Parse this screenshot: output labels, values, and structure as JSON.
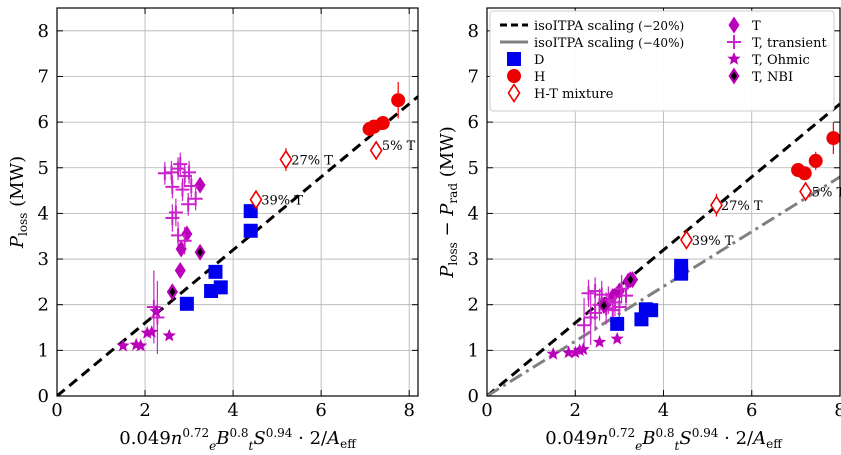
{
  "chart_data": [
    {
      "type": "scatter",
      "panel": "left",
      "xlabel": "0.049n̄ₑ^0.72 Bₜ^0.8 S^0.94 · 2/A_eff",
      "xlabel_parts": {
        "base": "0.049",
        "n": "n",
        "n_sub": "e",
        "n_sup": "0.72",
        "b": "B",
        "b_sub": "t",
        "b_sup": "0.8",
        "s": "S",
        "s_sup": "0.94",
        "tail": "· 2/",
        "a": "A",
        "a_sub": "eff"
      },
      "ylabel": "P_loss (MW)",
      "ylabel_parts": {
        "p": "P",
        "sub": "loss",
        "unit": "(MW)"
      },
      "xlim": [
        0,
        8.2
      ],
      "ylim": [
        0,
        8.5
      ],
      "xticks": [
        0,
        2,
        4,
        6,
        8
      ],
      "yticks": [
        0,
        1,
        2,
        3,
        4,
        5,
        6,
        7,
        8
      ],
      "grid": true,
      "lines": [
        {
          "style": "dashed",
          "color": "#000000",
          "slope": 0.8
        }
      ],
      "series": [
        {
          "marker": "square",
          "color": "#0000ee",
          "points": [
            [
              2.95,
              2.02
            ],
            [
              3.5,
              2.3
            ],
            [
              3.6,
              2.72
            ],
            [
              3.72,
              2.38
            ],
            [
              4.4,
              4.05
            ],
            [
              4.4,
              3.62
            ]
          ]
        },
        {
          "marker": "circle",
          "color": "#ee0000",
          "points": [
            [
              7.1,
              5.85
            ],
            [
              7.2,
              5.9
            ],
            [
              7.4,
              5.98
            ],
            [
              7.75,
              6.48
            ]
          ],
          "err": [
            0.15,
            0.15,
            0.15,
            0.4
          ]
        },
        {
          "marker": "diamond-open",
          "color": "#ee0000",
          "points": [
            [
              5.2,
              5.18
            ],
            [
              4.52,
              4.3
            ],
            [
              7.25,
              5.38
            ]
          ],
          "err": [
            0.25,
            0.2,
            0.2
          ]
        },
        {
          "marker": "diamond",
          "color": "#bb00bb",
          "points": [
            [
              2.8,
              2.75
            ],
            [
              2.82,
              3.22
            ],
            [
              2.95,
              3.55
            ],
            [
              3.25,
              4.62
            ],
            [
              2.62,
              2.28
            ]
          ]
        },
        {
          "marker": "plus",
          "color": "#cc22cc",
          "points": [
            [
              2.45,
              4.88
            ],
            [
              2.6,
              4.9
            ],
            [
              2.75,
              4.98
            ],
            [
              2.8,
              5.08
            ],
            [
              2.9,
              4.82
            ],
            [
              3.0,
              4.9
            ],
            [
              3.05,
              4.6
            ],
            [
              2.62,
              4.58
            ],
            [
              2.85,
              4.52
            ],
            [
              3.15,
              4.32
            ],
            [
              2.98,
              4.2
            ],
            [
              2.7,
              4.02
            ],
            [
              2.62,
              3.9
            ],
            [
              2.75,
              3.52
            ],
            [
              2.9,
              3.4
            ],
            [
              2.2,
              1.95
            ],
            [
              2.28,
              1.72
            ]
          ],
          "err": [
            0.25,
            0.25,
            0.25,
            0.25,
            0.25,
            0.25,
            0.25,
            0.25,
            0.25,
            0.25,
            0.25,
            0.3,
            0.3,
            0.3,
            0.3,
            0.8,
            0.8
          ]
        },
        {
          "marker": "star",
          "color": "#bb00bb",
          "points": [
            [
              1.5,
              1.1
            ],
            [
              1.8,
              1.12
            ],
            [
              1.9,
              1.1
            ],
            [
              2.05,
              1.38
            ],
            [
              2.15,
              1.4
            ],
            [
              2.25,
              1.85
            ],
            [
              2.55,
              1.32
            ]
          ]
        },
        {
          "marker": "diamond-black",
          "color": "#bb00bb",
          "points": [
            [
              2.62,
              2.28
            ],
            [
              3.25,
              3.15
            ]
          ]
        }
      ],
      "annotations": [
        {
          "text": "27% T",
          "x": 5.32,
          "y": 5.18
        },
        {
          "text": "39% T",
          "x": 4.64,
          "y": 4.3
        },
        {
          "text": "5% T",
          "x": 7.38,
          "y": 5.5
        }
      ]
    },
    {
      "type": "scatter",
      "panel": "right",
      "xlabel": "0.049n̄ₑ^0.72 Bₜ^0.8 S^0.94 · 2/A_eff",
      "xlabel_parts": {
        "base": "0.049",
        "n": "n",
        "n_sub": "e",
        "n_sup": "0.72",
        "b": "B",
        "b_sub": "t",
        "b_sup": "0.8",
        "s": "S",
        "s_sup": "0.94",
        "tail": "· 2/",
        "a": "A",
        "a_sub": "eff"
      },
      "ylabel": "P_loss − P_rad (MW)",
      "ylabel_parts": {
        "p": "P",
        "sub": "loss",
        "minus": "−",
        "p2": "P",
        "sub2": "rad",
        "unit": "(MW)"
      },
      "xlim": [
        0,
        8.0
      ],
      "ylim": [
        0,
        8.5
      ],
      "xticks": [
        0,
        2,
        4,
        6,
        8
      ],
      "yticks": [
        0,
        1,
        2,
        3,
        4,
        5,
        6,
        7,
        8
      ],
      "grid": true,
      "legend_placement": "top-left",
      "legend": {
        "col1": [
          {
            "label": "isoITPA scaling",
            "suffix": "(−20%)",
            "marker": "line-dashed",
            "color": "#000000"
          },
          {
            "label": "isoITPA scaling",
            "suffix": "(−40%)",
            "marker": "line-gray",
            "color": "#808080"
          },
          {
            "label": "D",
            "marker": "square",
            "color": "#0000ee"
          },
          {
            "label": "H",
            "marker": "circle",
            "color": "#ee0000"
          },
          {
            "label": "H-T mixture",
            "marker": "diamond-open",
            "color": "#ee0000"
          }
        ],
        "col2": [
          {
            "label": "T",
            "marker": "diamond",
            "color": "#bb00bb"
          },
          {
            "label": "T, transient",
            "marker": "plus",
            "color": "#cc22cc"
          },
          {
            "label": "T, Ohmic",
            "marker": "star",
            "color": "#bb00bb"
          },
          {
            "label": "T, NBI",
            "marker": "diamond-black",
            "color": "#bb00bb"
          }
        ]
      },
      "lines": [
        {
          "style": "dashed",
          "color": "#000000",
          "slope": 0.8
        },
        {
          "style": "dashdot",
          "color": "#808080",
          "slope": 0.6
        }
      ],
      "series": [
        {
          "marker": "square",
          "color": "#0000ee",
          "points": [
            [
              2.95,
              1.58
            ],
            [
              3.5,
              1.68
            ],
            [
              3.6,
              1.9
            ],
            [
              3.72,
              1.88
            ],
            [
              4.4,
              2.85
            ],
            [
              4.4,
              2.68
            ]
          ]
        },
        {
          "marker": "circle",
          "color": "#ee0000",
          "points": [
            [
              7.05,
              4.95
            ],
            [
              7.2,
              4.88
            ],
            [
              7.45,
              5.15
            ],
            [
              7.85,
              5.65
            ]
          ],
          "err": [
            0.15,
            0.15,
            0.2,
            0.35
          ]
        },
        {
          "marker": "diamond-open",
          "color": "#ee0000",
          "points": [
            [
              5.2,
              4.18
            ],
            [
              4.52,
              3.42
            ],
            [
              7.22,
              4.48
            ]
          ],
          "err": [
            0.25,
            0.2,
            0.2
          ]
        },
        {
          "marker": "diamond",
          "color": "#bb00bb",
          "points": [
            [
              2.7,
              2.0
            ],
            [
              2.85,
              2.18
            ],
            [
              3.0,
              2.3
            ],
            [
              3.2,
              2.52
            ],
            [
              3.3,
              2.55
            ]
          ]
        },
        {
          "marker": "plus",
          "color": "#cc22cc",
          "points": [
            [
              2.3,
              2.25
            ],
            [
              2.45,
              2.3
            ],
            [
              2.6,
              2.22
            ],
            [
              2.75,
              2.1
            ],
            [
              2.9,
              2.05
            ],
            [
              3.05,
              2.35
            ],
            [
              3.15,
              2.2
            ],
            [
              2.55,
              2.0
            ],
            [
              2.7,
              1.92
            ],
            [
              2.85,
              1.88
            ],
            [
              3.0,
              1.95
            ],
            [
              2.45,
              1.82
            ],
            [
              2.2,
              1.55
            ],
            [
              2.35,
              1.72
            ]
          ],
          "err": [
            0.3,
            0.3,
            0.3,
            0.3,
            0.3,
            0.3,
            0.3,
            0.35,
            0.35,
            0.35,
            0.35,
            0.4,
            0.6,
            0.6
          ]
        },
        {
          "marker": "star",
          "color": "#bb00bb",
          "points": [
            [
              1.5,
              0.92
            ],
            [
              1.85,
              0.95
            ],
            [
              2.0,
              0.95
            ],
            [
              2.1,
              1.0
            ],
            [
              2.18,
              1.02
            ],
            [
              2.55,
              1.18
            ],
            [
              2.95,
              1.25
            ]
          ]
        },
        {
          "marker": "diamond-black",
          "color": "#bb00bb",
          "points": [
            [
              2.65,
              1.98
            ],
            [
              3.25,
              2.55
            ]
          ]
        }
      ],
      "annotations": [
        {
          "text": "27% T",
          "x": 5.3,
          "y": 4.18
        },
        {
          "text": "39% T",
          "x": 4.64,
          "y": 3.42
        },
        {
          "text": "5% T",
          "x": 7.36,
          "y": 4.48
        }
      ]
    }
  ]
}
